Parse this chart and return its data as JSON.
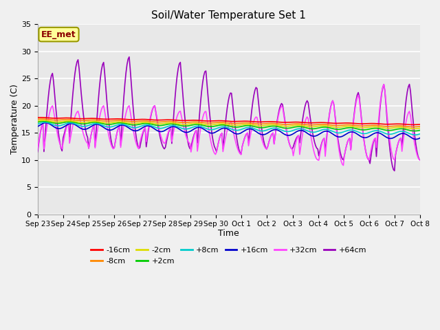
{
  "title": "Soil/Water Temperature Set 1",
  "xlabel": "Time",
  "ylabel": "Temperature (C)",
  "ylim": [
    0,
    35
  ],
  "yticks": [
    0,
    5,
    10,
    15,
    20,
    25,
    30,
    35
  ],
  "bg_color": "#d8d8d8",
  "plot_bg_color": "#e0e0e0",
  "watermark_text": "EE_met",
  "watermark_fg": "#8b0000",
  "watermark_bg": "#ffff99",
  "series_colors": {
    "-16cm": "#ff0000",
    "-8cm": "#ff8800",
    "-2cm": "#dddd00",
    "+2cm": "#00cc00",
    "+8cm": "#00cccc",
    "+16cm": "#0000cc",
    "+32cm": "#ff44ff",
    "+64cm": "#9900bb"
  },
  "x_labels": [
    "Sep 23",
    "Sep 24",
    "Sep 25",
    "Sep 26",
    "Sep 27",
    "Sep 28",
    "Sep 29",
    "Sep 30",
    "Oct 1",
    "Oct 2",
    "Oct 3",
    "Oct 4",
    "Oct 5",
    "Oct 6",
    "Oct 7",
    "Oct 8"
  ]
}
